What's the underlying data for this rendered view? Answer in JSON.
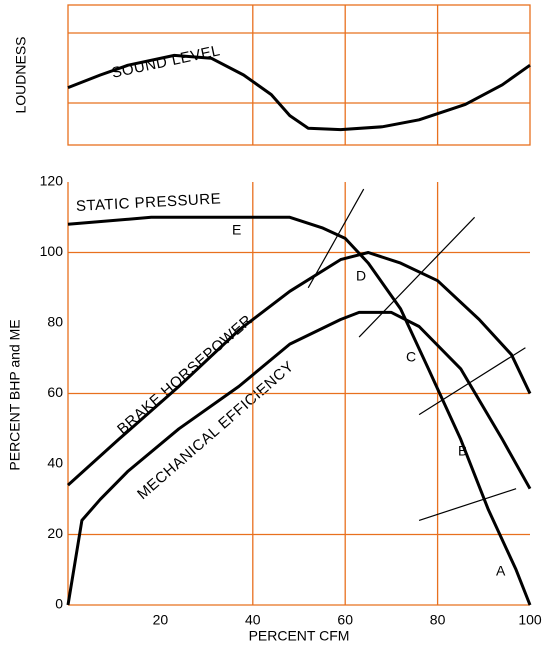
{
  "chart_data": [
    {
      "type": "line",
      "ylabel": "LOUDNESS",
      "xlim": [
        0,
        100
      ],
      "ylim": [
        0,
        100
      ],
      "xgrid": [
        40,
        60,
        80
      ],
      "ygrid": [
        30,
        80
      ],
      "grid_color": "#e8701e",
      "series": [
        {
          "name": "SOUND LEVEL",
          "color": "#000000",
          "x": [
            0,
            7,
            13,
            23,
            31,
            38,
            44,
            48,
            52,
            59,
            68,
            76,
            86,
            94,
            100
          ],
          "values": [
            41,
            50,
            57,
            64,
            62,
            50,
            36,
            21,
            12,
            11,
            13,
            18,
            29,
            43,
            57
          ]
        }
      ]
    },
    {
      "type": "line",
      "xlabel": "PERCENT CFM",
      "ylabel": "PERCENT BHP and ME",
      "xlim": [
        0,
        100
      ],
      "ylim": [
        0,
        120
      ],
      "xticks": [
        20,
        40,
        60,
        80,
        100
      ],
      "yticks": [
        0,
        20,
        40,
        60,
        80,
        100,
        120
      ],
      "xgrid": [
        40,
        60,
        80
      ],
      "ygrid": [
        20,
        60,
        100
      ],
      "grid_color": "#e8701e",
      "series": [
        {
          "name": "STATIC PRESSURE",
          "color": "#000000",
          "x": [
            0,
            18,
            39,
            48,
            55,
            60,
            65,
            72,
            78,
            85,
            91,
            97,
            100
          ],
          "values": [
            108,
            110,
            110,
            110,
            107,
            104,
            97,
            84,
            67,
            47,
            27,
            10,
            0
          ]
        },
        {
          "name": "BRAKE HORSEPOWER",
          "color": "#000000",
          "x": [
            0,
            11,
            24,
            37,
            48,
            59,
            65,
            72,
            80,
            89,
            96,
            100
          ],
          "values": [
            34,
            47,
            62,
            78,
            89,
            98,
            100,
            97,
            92,
            81,
            71,
            60
          ]
        },
        {
          "name": "MECHANICAL EFFICIENCY",
          "color": "#000000",
          "x": [
            0,
            3,
            7,
            13,
            24,
            37,
            48,
            59,
            63,
            70,
            76,
            85,
            94,
            100
          ],
          "values": [
            0,
            24,
            30,
            38,
            50,
            62,
            74,
            81,
            83,
            83,
            79,
            67,
            47,
            33
          ]
        }
      ],
      "reference_lines": [
        {
          "x": [
            52,
            64
          ],
          "values": [
            90,
            118
          ]
        },
        {
          "x": [
            63,
            88
          ],
          "values": [
            76,
            110
          ]
        },
        {
          "x": [
            76,
            99
          ],
          "values": [
            54,
            73
          ]
        },
        {
          "x": [
            76,
            97
          ],
          "values": [
            24,
            33
          ]
        }
      ],
      "annotations": [
        "E",
        "D",
        "C",
        "B",
        "A"
      ]
    }
  ]
}
